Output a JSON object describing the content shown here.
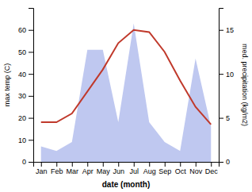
{
  "chart_data": {
    "type": "line",
    "xlabel": "date (month)",
    "ylabel": "max temp (C)",
    "y2label": "med. precipitation (kg/m2)",
    "categories": [
      "Jan",
      "Feb",
      "Mar",
      "Apr",
      "May",
      "Jun",
      "Jul",
      "Aug",
      "Sep",
      "Oct",
      "Nov",
      "Dec"
    ],
    "series": [
      {
        "type": "area",
        "color": "#bfc8f0",
        "values": [
          7,
          5,
          9,
          51,
          51,
          18,
          63,
          18,
          9,
          5,
          47,
          16
        ]
      },
      {
        "type": "line",
        "color": "#c0392b",
        "values": [
          18,
          18,
          22,
          32,
          42,
          54,
          60,
          59,
          50,
          37,
          25,
          17
        ]
      }
    ],
    "ylim": [
      0,
      70
    ],
    "yticks": [
      0,
      10,
      20,
      30,
      40,
      50,
      60
    ],
    "y2lim": [
      0,
      17.5
    ],
    "y2ticks": [
      0,
      5,
      10,
      15
    ]
  }
}
